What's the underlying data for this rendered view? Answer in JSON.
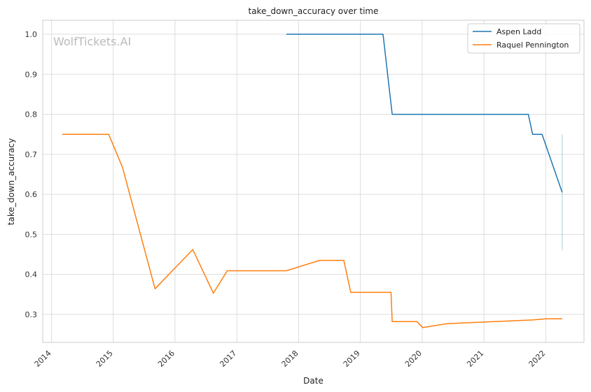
{
  "chart_data": {
    "type": "line",
    "title": "take_down_accuracy over time",
    "xlabel": "Date",
    "ylabel": "take_down_accuracy",
    "watermark": "WolfTickets.AI",
    "legend_position": "top-right",
    "grid": true,
    "xlim": [
      "2013-11-10",
      "2022-08-15"
    ],
    "ylim": [
      0.23,
      1.035
    ],
    "x_ticks": [
      "2014",
      "2015",
      "2016",
      "2017",
      "2018",
      "2019",
      "2020",
      "2021",
      "2022"
    ],
    "y_ticks": [
      "0.3",
      "0.4",
      "0.5",
      "0.6",
      "0.7",
      "0.8",
      "0.9",
      "1.0"
    ],
    "series": [
      {
        "name": "Aspen Ladd",
        "color": "#1f77b4",
        "points": [
          [
            "2017-10-20",
            1.0
          ],
          [
            "2019-05-15",
            1.0
          ],
          [
            "2019-07-08",
            0.8
          ],
          [
            "2021-09-20",
            0.8
          ],
          [
            "2021-10-15",
            0.75
          ],
          [
            "2021-12-10",
            0.75
          ],
          [
            "2022-04-08",
            0.605
          ]
        ]
      },
      {
        "name": "Raquel Pennington",
        "color": "#ff7f0e",
        "points": [
          [
            "2014-03-05",
            0.75
          ],
          [
            "2014-12-05",
            0.75
          ],
          [
            "2015-02-25",
            0.667
          ],
          [
            "2015-09-05",
            0.364
          ],
          [
            "2016-04-15",
            0.462
          ],
          [
            "2016-08-15",
            0.353
          ],
          [
            "2016-11-05",
            0.409
          ],
          [
            "2017-10-20",
            0.409
          ],
          [
            "2018-05-05",
            0.435
          ],
          [
            "2018-09-25",
            0.435
          ],
          [
            "2018-11-05",
            0.355
          ],
          [
            "2019-07-01",
            0.355
          ],
          [
            "2019-07-08",
            0.282
          ],
          [
            "2019-12-01",
            0.282
          ],
          [
            "2020-01-05",
            0.267
          ],
          [
            "2020-06-01",
            0.277
          ],
          [
            "2021-03-01",
            0.282
          ],
          [
            "2021-10-15",
            0.286
          ],
          [
            "2022-01-01",
            0.289
          ],
          [
            "2022-04-08",
            0.289
          ]
        ]
      }
    ],
    "band": {
      "x": "2022-04-08",
      "low": 0.46,
      "high": 0.75,
      "color": "#9ecfd0"
    }
  }
}
